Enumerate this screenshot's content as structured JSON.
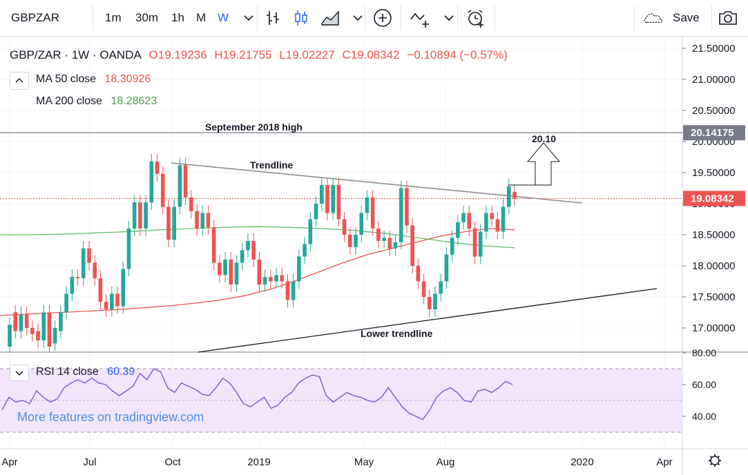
{
  "toolbar": {
    "symbol": "GBPZAR",
    "intervals": [
      "1m",
      "30m",
      "1h",
      "M",
      "W"
    ],
    "active_interval": "W",
    "save_label": "Save",
    "icons": [
      "chevron-down-icon",
      "bar-chart-icon",
      "candles-icon",
      "area-chart-icon",
      "plus-circle-icon",
      "indicator-icon",
      "alarm-icon",
      "cloud-icon",
      "camera-icon"
    ]
  },
  "legend": {
    "pair": "GBP/ZAR · 1W · OANDA",
    "open": "O19.19236",
    "high": "H19.21755",
    "low": "L19.02227",
    "close": "C19.08342",
    "change": "−0.10894 (−0.57%)",
    "ma1_label": "MA  50 close",
    "ma1_value": "18.30926",
    "ma2_label": "MA  200 close",
    "ma2_value": "18.28623"
  },
  "rsi": {
    "label": "RSI  14 close",
    "value": "60.39",
    "ticks": [
      "80.00",
      "60.00",
      "40.00"
    ],
    "values": [
      44,
      52,
      49,
      50,
      48,
      56,
      52,
      49,
      51,
      58,
      61,
      63,
      61,
      64,
      61,
      60,
      56,
      53,
      56,
      59,
      67,
      63,
      70,
      68,
      58,
      55,
      61,
      59,
      57,
      54,
      53,
      58,
      64,
      61,
      55,
      48,
      46,
      49,
      52,
      45,
      47,
      52,
      55,
      61,
      64,
      66,
      65,
      53,
      49,
      52,
      55,
      53,
      52,
      50,
      49,
      52,
      58,
      52,
      46,
      42,
      40,
      38,
      44,
      52,
      56,
      58,
      55,
      50,
      49,
      56,
      57,
      55,
      58,
      62,
      60
    ]
  },
  "watermark": "More features on tradingview.com",
  "colors": {
    "up": "#26a69a",
    "down": "#ef5350",
    "ma50": "#ef5350",
    "ma200": "#66bb6a",
    "price_line": "#ef5350",
    "rsi_line": "#7e57c2",
    "rsi_band": "#f3e5fc"
  },
  "chart_data": {
    "type": "candlestick",
    "instrument": "GBP/ZAR",
    "interval": "1W",
    "source": "OANDA",
    "y_ticks": [
      "21.50000",
      "21.00000",
      "20.50000",
      "20.00000",
      "19.50000",
      "19.00000",
      "18.50000",
      "18.00000",
      "17.50000",
      "17.00000"
    ],
    "ylim": [
      16.7,
      21.7
    ],
    "x_ticks": [
      "Apr",
      "Jul",
      "Oct",
      "2019",
      "May",
      "Aug",
      "2020",
      "Apr"
    ],
    "price_labels": {
      "sep_2018_high": "20.14175",
      "last": "19.08342"
    },
    "annotations": [
      "September 2018 high",
      "Trendline",
      "Lower trendline",
      "20.10"
    ],
    "candles": [
      {
        "o": 16.7,
        "c": 17.05
      },
      {
        "o": 17.25,
        "c": 16.95
      },
      {
        "o": 16.95,
        "c": 17.22
      },
      {
        "o": 17.22,
        "c": 17.0
      },
      {
        "o": 17.0,
        "c": 16.9
      },
      {
        "o": 16.95,
        "c": 16.8
      },
      {
        "o": 16.8,
        "c": 17.25
      },
      {
        "o": 17.25,
        "c": 16.7
      },
      {
        "o": 16.75,
        "c": 17.0
      },
      {
        "o": 16.95,
        "c": 17.25
      },
      {
        "o": 17.25,
        "c": 17.55
      },
      {
        "o": 17.55,
        "c": 17.82
      },
      {
        "o": 17.82,
        "c": 17.8
      },
      {
        "o": 17.8,
        "c": 18.28
      },
      {
        "o": 18.28,
        "c": 18.05
      },
      {
        "o": 18.05,
        "c": 17.8
      },
      {
        "o": 17.8,
        "c": 17.42
      },
      {
        "o": 17.42,
        "c": 17.3
      },
      {
        "o": 17.3,
        "c": 17.55
      },
      {
        "o": 17.55,
        "c": 17.35
      },
      {
        "o": 17.35,
        "c": 17.95
      },
      {
        "o": 17.95,
        "c": 18.6
      },
      {
        "o": 18.6,
        "c": 19.02
      },
      {
        "o": 19.02,
        "c": 18.6
      },
      {
        "o": 18.6,
        "c": 19.02
      },
      {
        "o": 19.02,
        "c": 19.68
      },
      {
        "o": 19.68,
        "c": 19.48
      },
      {
        "o": 19.48,
        "c": 18.95
      },
      {
        "o": 18.95,
        "c": 18.42
      },
      {
        "o": 18.42,
        "c": 18.95
      },
      {
        "o": 18.95,
        "c": 19.62
      },
      {
        "o": 19.62,
        "c": 19.1
      },
      {
        "o": 19.1,
        "c": 18.88
      },
      {
        "o": 18.88,
        "c": 18.6
      },
      {
        "o": 18.6,
        "c": 18.85
      },
      {
        "o": 18.85,
        "c": 18.62
      },
      {
        "o": 18.62,
        "c": 18.05
      },
      {
        "o": 18.05,
        "c": 17.85
      },
      {
        "o": 17.85,
        "c": 18.1
      },
      {
        "o": 18.1,
        "c": 17.7
      },
      {
        "o": 17.7,
        "c": 18.05
      },
      {
        "o": 18.05,
        "c": 18.25
      },
      {
        "o": 18.25,
        "c": 18.4
      },
      {
        "o": 18.4,
        "c": 18.1
      },
      {
        "o": 18.1,
        "c": 17.7
      },
      {
        "o": 17.7,
        "c": 17.82
      },
      {
        "o": 17.82,
        "c": 17.75
      },
      {
        "o": 17.75,
        "c": 17.85
      },
      {
        "o": 17.85,
        "c": 17.75
      },
      {
        "o": 17.75,
        "c": 17.45
      },
      {
        "o": 17.45,
        "c": 17.75
      },
      {
        "o": 17.75,
        "c": 18.15
      },
      {
        "o": 18.15,
        "c": 18.35
      },
      {
        "o": 18.35,
        "c": 18.75
      },
      {
        "o": 18.75,
        "c": 19.0
      },
      {
        "o": 19.0,
        "c": 19.3
      },
      {
        "o": 19.3,
        "c": 18.85
      },
      {
        "o": 18.85,
        "c": 19.3
      },
      {
        "o": 19.3,
        "c": 18.75
      },
      {
        "o": 18.75,
        "c": 18.5
      },
      {
        "o": 18.5,
        "c": 18.3
      },
      {
        "o": 18.3,
        "c": 18.5
      },
      {
        "o": 18.5,
        "c": 18.85
      },
      {
        "o": 18.85,
        "c": 19.1
      },
      {
        "o": 19.1,
        "c": 18.6
      },
      {
        "o": 18.6,
        "c": 18.4
      },
      {
        "o": 18.4,
        "c": 18.45
      },
      {
        "o": 18.45,
        "c": 18.28
      },
      {
        "o": 18.28,
        "c": 18.38
      },
      {
        "o": 18.38,
        "c": 19.25
      },
      {
        "o": 19.25,
        "c": 18.65
      },
      {
        "o": 18.65,
        "c": 18.0
      },
      {
        "o": 18.0,
        "c": 17.75
      },
      {
        "o": 17.75,
        "c": 17.5
      },
      {
        "o": 17.5,
        "c": 17.3
      },
      {
        "o": 17.3,
        "c": 17.55
      },
      {
        "o": 17.55,
        "c": 17.75
      },
      {
        "o": 17.75,
        "c": 18.18
      },
      {
        "o": 18.18,
        "c": 18.45
      },
      {
        "o": 18.45,
        "c": 18.7
      },
      {
        "o": 18.7,
        "c": 18.85
      },
      {
        "o": 18.85,
        "c": 18.6
      },
      {
        "o": 18.6,
        "c": 18.15
      },
      {
        "o": 18.15,
        "c": 18.55
      },
      {
        "o": 18.55,
        "c": 18.85
      },
      {
        "o": 18.85,
        "c": 18.75
      },
      {
        "o": 18.75,
        "c": 18.55
      },
      {
        "o": 18.55,
        "c": 18.95
      },
      {
        "o": 18.95,
        "c": 19.28
      },
      {
        "o": 19.19,
        "c": 19.08
      }
    ],
    "ma50": [
      17.2,
      17.22,
      17.24,
      17.26,
      17.28,
      17.3,
      17.33,
      17.36,
      17.4,
      17.45,
      17.52,
      17.62,
      17.75,
      17.9,
      18.05,
      18.18,
      18.28,
      18.38,
      18.48,
      18.55,
      18.6,
      18.58
    ],
    "ma200": [
      18.5,
      18.5,
      18.51,
      18.53,
      18.55,
      18.58,
      18.6,
      18.62,
      18.63,
      18.62,
      18.6,
      18.57,
      18.52,
      18.45,
      18.38,
      18.32,
      18.29
    ]
  }
}
